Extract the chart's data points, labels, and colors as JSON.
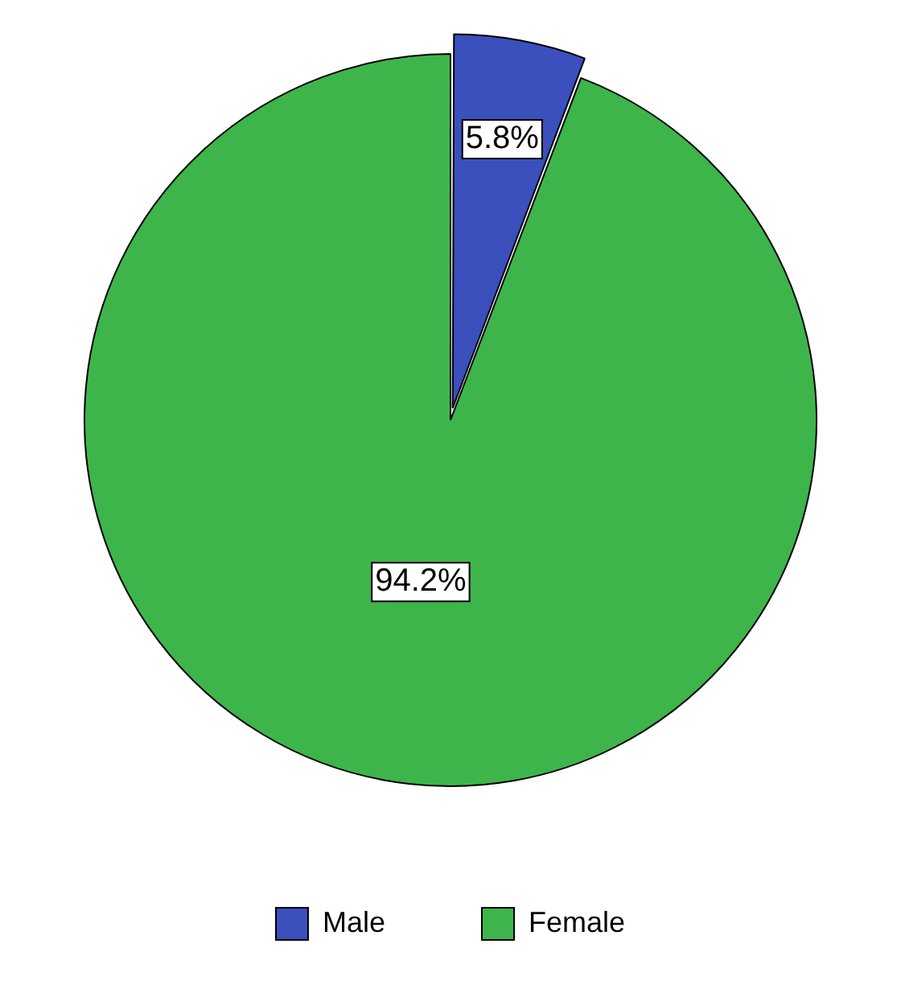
{
  "chart_data": {
    "type": "pie",
    "categories": [
      "Male",
      "Female"
    ],
    "values": [
      5.8,
      94.2
    ],
    "colors": [
      "#3b4fbd",
      "#3db54b"
    ],
    "value_labels": [
      "5.8%",
      "94.2%"
    ],
    "legend": "bottom"
  }
}
